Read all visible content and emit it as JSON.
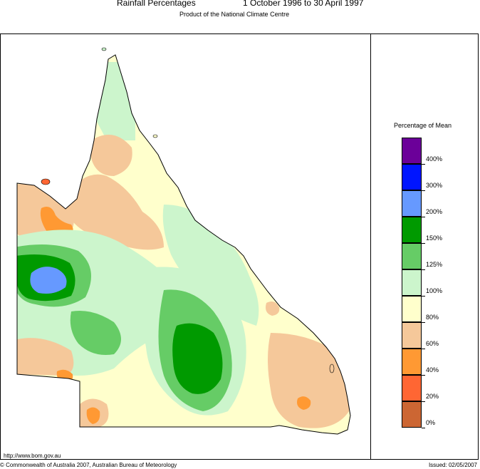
{
  "title": {
    "main": "Rainfall Percentages",
    "period": "1 October 1996 to 30 April 1997",
    "subtitle": "Product of the National Climate Centre"
  },
  "legend": {
    "title": "Percentage of Mean",
    "labels": [
      "400%",
      "300%",
      "200%",
      "150%",
      "125%",
      "100%",
      "80%",
      "60%",
      "40%",
      "20%",
      "0%"
    ],
    "colors": [
      "#6b0099",
      "#0015ff",
      "#6699ff",
      "#009a00",
      "#66cc66",
      "#ccf5cc",
      "#ffffcc",
      "#f5c89a",
      "#ff9933",
      "#ff6633",
      "#cc6633"
    ]
  },
  "map": {
    "region": "Queensland",
    "colors": {
      "outline": "#000000",
      "base": "#ffffcc",
      "light_green": "#ccf5cc",
      "mid_green": "#66cc66",
      "dark_green": "#009a00",
      "light_blue": "#6699ff",
      "tan": "#f5c89a",
      "orange": "#ff9933",
      "red_orange": "#ff6633"
    }
  },
  "footer": {
    "url": "http://www.bom.gov.au",
    "copyright": "© Commonwealth of Australia 2007, Australian Bureau of Meteorology",
    "issued": "Issued: 02/05/2007"
  }
}
